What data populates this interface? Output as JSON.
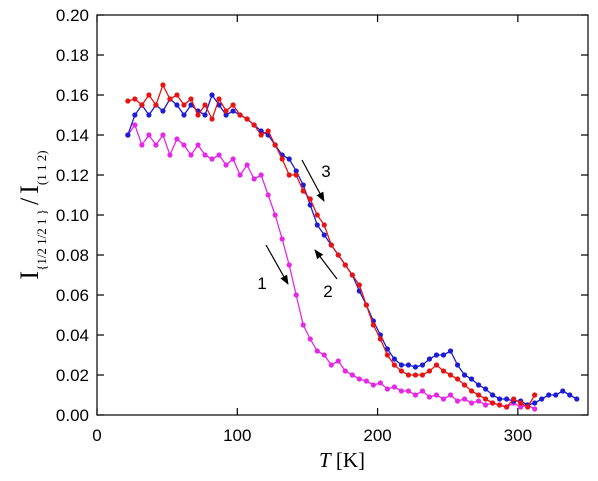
{
  "chart_data": {
    "type": "line",
    "x_label": {
      "italic": "T",
      "rest": "[K]"
    },
    "y_label": {
      "main1": "I",
      "sub1": "{1/2 1/2 1 }",
      "slash": "/",
      "main2": "I",
      "sub2": "(1 1 2)"
    },
    "x": [
      22,
      27,
      32,
      37,
      42,
      47,
      52,
      57,
      62,
      67,
      72,
      77,
      82,
      87,
      92,
      97,
      102,
      107,
      112,
      117,
      122,
      127,
      132,
      137,
      142,
      147,
      152,
      157,
      162,
      167,
      172,
      177,
      182,
      187,
      192,
      197,
      202,
      207,
      212,
      217,
      222,
      227,
      232,
      237,
      242,
      247,
      252,
      257,
      262,
      267,
      272,
      277,
      282,
      287,
      292,
      297,
      302,
      307,
      312,
      317,
      322,
      327,
      332,
      337,
      342
    ],
    "series": [
      {
        "color": "#e628e6",
        "values": [
          0.14,
          0.145,
          0.135,
          0.14,
          0.135,
          0.14,
          0.13,
          0.138,
          0.135,
          0.13,
          0.135,
          0.13,
          0.128,
          0.13,
          0.125,
          0.128,
          0.12,
          0.125,
          0.118,
          0.12,
          0.11,
          0.1,
          0.088,
          0.075,
          0.06,
          0.045,
          0.038,
          0.032,
          0.03,
          0.025,
          0.027,
          0.022,
          0.02,
          0.018,
          0.017,
          0.015,
          0.016,
          0.013,
          0.014,
          0.012,
          0.012,
          0.01,
          0.012,
          0.009,
          0.01,
          0.008,
          0.01,
          0.007,
          0.008,
          0.006,
          0.007,
          0.005,
          0.006,
          0.005,
          0.004,
          0.006,
          0.004,
          0.005,
          0.003,
          null,
          null,
          null,
          null,
          null,
          null
        ]
      },
      {
        "color": "#1c1cd6",
        "values": [
          0.14,
          0.15,
          0.155,
          0.15,
          0.155,
          0.152,
          0.158,
          0.155,
          0.15,
          0.155,
          0.152,
          0.15,
          0.16,
          0.155,
          0.15,
          0.152,
          0.15,
          0.148,
          0.145,
          0.142,
          0.14,
          0.135,
          0.13,
          0.128,
          0.122,
          0.115,
          0.105,
          0.095,
          0.09,
          0.085,
          0.08,
          0.075,
          0.07,
          0.062,
          0.055,
          0.047,
          0.04,
          0.033,
          0.028,
          0.025,
          0.025,
          0.024,
          0.025,
          0.028,
          0.03,
          0.03,
          0.032,
          0.025,
          0.02,
          0.018,
          0.015,
          0.013,
          0.01,
          0.008,
          0.008,
          0.007,
          0.007,
          0.005,
          0.006,
          0.008,
          0.01,
          0.01,
          0.012,
          0.01,
          0.008
        ]
      },
      {
        "color": "#e81414",
        "values": [
          0.157,
          0.158,
          0.155,
          0.16,
          0.155,
          0.165,
          0.158,
          0.16,
          0.155,
          0.158,
          0.15,
          0.155,
          0.148,
          0.158,
          0.152,
          0.155,
          0.15,
          0.148,
          0.145,
          0.14,
          0.142,
          0.135,
          0.128,
          0.12,
          0.12,
          0.112,
          0.108,
          0.1,
          0.095,
          0.085,
          0.08,
          0.075,
          0.07,
          0.065,
          0.055,
          0.045,
          0.038,
          0.03,
          0.025,
          0.022,
          0.02,
          0.02,
          0.02,
          0.022,
          0.025,
          0.022,
          0.02,
          0.018,
          0.015,
          0.012,
          0.01,
          0.008,
          0.006,
          0.005,
          0.004,
          0.008,
          0.006,
          0.004,
          0.01,
          null,
          null,
          null,
          null,
          null,
          null
        ]
      }
    ],
    "xlim": [
      0,
      350
    ],
    "xticks": [
      0,
      100,
      200,
      300
    ],
    "ylim": [
      0,
      0.2
    ],
    "yticks": [
      {
        "value": 0,
        "label": "0.00"
      },
      {
        "value": 0.02,
        "label": "0.02"
      },
      {
        "value": 0.04,
        "label": "0.04"
      },
      {
        "value": 0.06,
        "label": "0.06"
      },
      {
        "value": 0.08,
        "label": "0.08"
      },
      {
        "value": 0.1,
        "label": "0.10"
      },
      {
        "value": 0.12,
        "label": "0.12"
      },
      {
        "value": 0.14,
        "label": "0.14"
      },
      {
        "value": 0.16,
        "label": "0.16"
      },
      {
        "value": 0.18,
        "label": "0.18"
      },
      {
        "value": 0.2,
        "label": "0.20"
      }
    ],
    "annotations": [
      "1",
      "2",
      "3"
    ]
  }
}
